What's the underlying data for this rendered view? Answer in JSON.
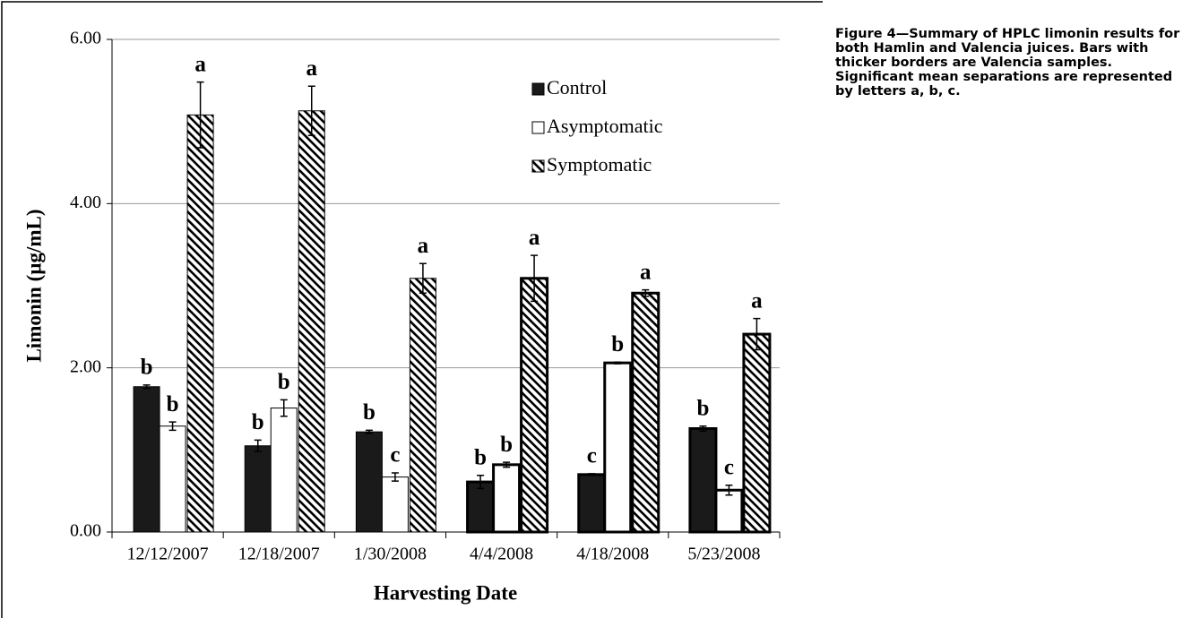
{
  "chart_data": {
    "type": "bar",
    "caption": "Figure 4—Summary of HPLC limonin results for both Hamlin and Valencia juices. Bars with thicker borders are Valencia samples. Significant mean separations are represented by letters a, b, c.",
    "x_label": "Harvesting Date",
    "y_label": "Limonin (µg/mL)",
    "categories": [
      "12/12/2007",
      "12/18/2007",
      "1/30/2008",
      "4/4/2008",
      "4/18/2008",
      "5/23/2008"
    ],
    "bar_border_widths": [
      1,
      1,
      1,
      3,
      3,
      3
    ],
    "series": [
      {
        "name": "Control",
        "color": "#1a1a1a",
        "fill": "solid",
        "values": [
          1.77,
          1.05,
          1.22,
          0.61,
          0.7,
          1.26
        ],
        "errors": [
          0.02,
          0.07,
          0.02,
          0.08,
          0.01,
          0.03
        ],
        "letters": [
          "b",
          "b",
          "b",
          "b",
          "c",
          "b"
        ]
      },
      {
        "name": "Asymptomatic",
        "color": "#ffffff",
        "fill": "solid",
        "values": [
          1.29,
          1.51,
          0.67,
          0.82,
          2.06,
          0.51
        ],
        "errors": [
          0.05,
          0.1,
          0.05,
          0.03,
          0.01,
          0.06
        ],
        "letters": [
          "b",
          "b",
          "c",
          "b",
          "b",
          "c"
        ]
      },
      {
        "name": "Symptomatic",
        "color": "#000000",
        "fill": "hatch",
        "values": [
          5.08,
          5.13,
          3.09,
          3.09,
          2.91,
          2.41
        ],
        "errors": [
          0.4,
          0.3,
          0.18,
          0.28,
          0.04,
          0.19
        ],
        "letters": [
          "a",
          "a",
          "a",
          "a",
          "a",
          "a"
        ]
      }
    ],
    "ylim": [
      0,
      6
    ],
    "yticks": [
      {
        "value": 0,
        "label": "0.00"
      },
      {
        "value": 2,
        "label": "2.00"
      },
      {
        "value": 4,
        "label": "4.00"
      },
      {
        "value": 6,
        "label": "6.00"
      }
    ],
    "grid": true
  }
}
